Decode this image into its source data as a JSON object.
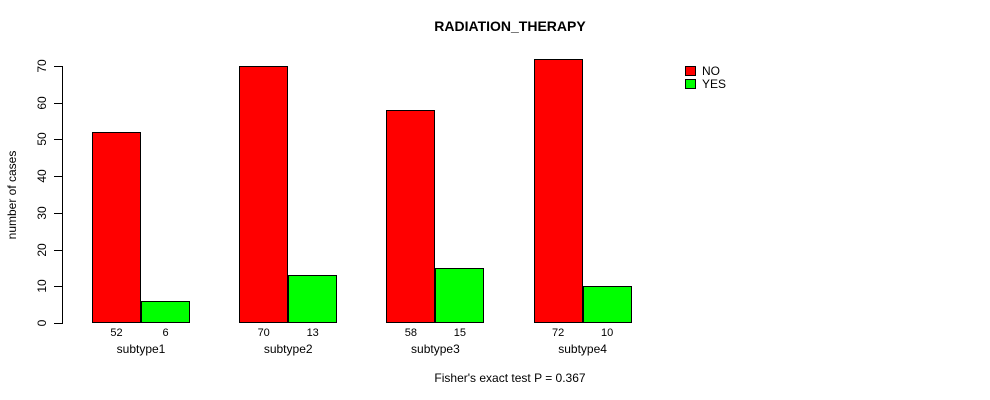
{
  "chart_data": {
    "type": "bar",
    "title": "RADIATION_THERAPY",
    "ylabel": "number of cases",
    "xlabel": "",
    "categories": [
      "subtype1",
      "subtype2",
      "subtype3",
      "subtype4"
    ],
    "series": [
      {
        "name": "NO",
        "color": "#ff0000",
        "values": [
          52,
          70,
          58,
          72
        ]
      },
      {
        "name": "YES",
        "color": "#00ff00",
        "values": [
          6,
          13,
          15,
          10
        ]
      }
    ],
    "yticks": [
      0,
      10,
      20,
      30,
      40,
      50,
      60,
      70
    ],
    "ylim": [
      0,
      70
    ],
    "grid": false,
    "legend_position": "top-right",
    "bar_border_color": "#000000",
    "footnote": "Fisher's exact test P = 0.367"
  }
}
